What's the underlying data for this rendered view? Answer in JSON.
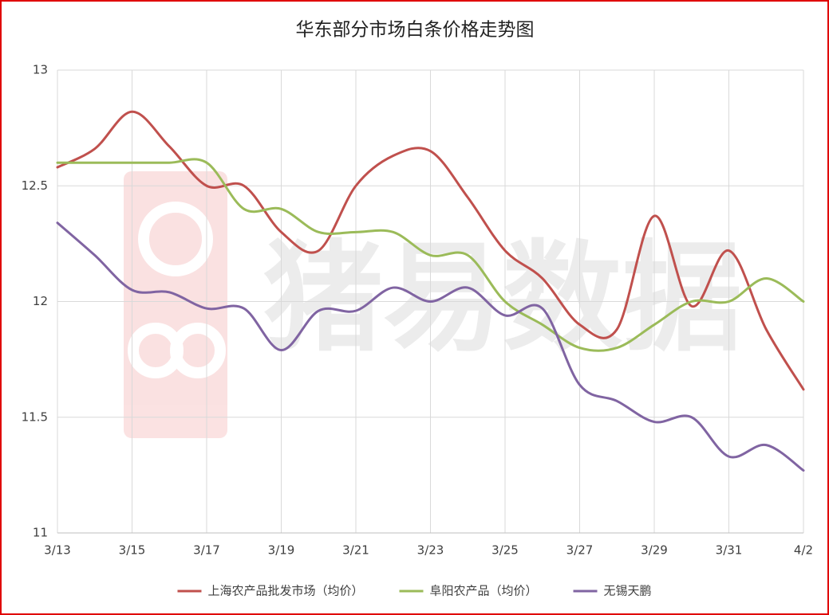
{
  "chart_data": {
    "type": "line",
    "title": "华东部分市场白条价格走势图",
    "watermark": "猪易数据",
    "categories": [
      "3/13",
      null,
      "3/15",
      null,
      "3/17",
      null,
      "3/19",
      null,
      "3/21",
      null,
      "3/23",
      null,
      "3/25",
      null,
      "3/27",
      null,
      "3/29",
      null,
      "3/31",
      null,
      "4/2"
    ],
    "series": [
      {
        "name": "上海农产品批发市场（均价）",
        "color": "#c0504d",
        "values": [
          12.58,
          12.66,
          12.82,
          12.67,
          12.5,
          12.5,
          12.3,
          12.22,
          12.5,
          12.63,
          12.65,
          12.45,
          12.22,
          12.1,
          11.9,
          11.88,
          12.37,
          11.98,
          12.22,
          11.88,
          11.62
        ]
      },
      {
        "name": "阜阳农产品（均价）",
        "color": "#9bbb59",
        "values": [
          12.6,
          12.6,
          12.6,
          12.6,
          12.6,
          12.4,
          12.4,
          12.3,
          12.3,
          12.3,
          12.2,
          12.2,
          12.0,
          11.9,
          11.8,
          11.8,
          11.9,
          12.0,
          12.0,
          12.1,
          12.0
        ]
      },
      {
        "name": "无锡天鹏",
        "color": "#8064a2",
        "values": [
          12.34,
          12.2,
          12.05,
          12.04,
          11.97,
          11.97,
          11.79,
          11.96,
          11.96,
          12.06,
          12.0,
          12.06,
          11.94,
          11.97,
          11.64,
          11.57,
          11.48,
          11.5,
          11.33,
          11.38,
          11.27
        ]
      }
    ],
    "ylim": [
      11,
      13
    ],
    "yticks": [
      11,
      11.5,
      12,
      12.5,
      13
    ],
    "grid": true,
    "legend": "bottom"
  }
}
